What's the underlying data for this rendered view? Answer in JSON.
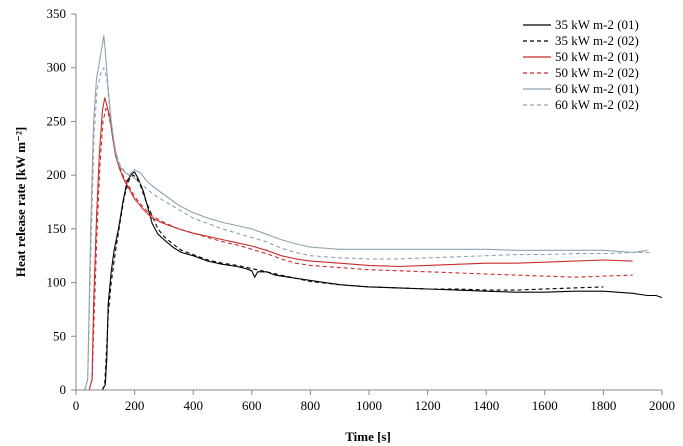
{
  "chart_data": {
    "type": "line",
    "title": "",
    "xlabel": "Time [s]",
    "ylabel": "Heat release rate [kW m⁻²]",
    "xlim": [
      0,
      2000
    ],
    "ylim": [
      0,
      350
    ],
    "xticks": [
      0,
      200,
      400,
      600,
      800,
      1000,
      1200,
      1400,
      1600,
      1800,
      2000
    ],
    "yticks": [
      0,
      50,
      100,
      150,
      200,
      250,
      300,
      350
    ],
    "grid": false,
    "legend_position": "top-right",
    "series": [
      {
        "name": "35 kW m-2 (01)",
        "color": "#000000",
        "dash": "solid",
        "points": [
          [
            90,
            0
          ],
          [
            100,
            5
          ],
          [
            105,
            30
          ],
          [
            110,
            80
          ],
          [
            120,
            110
          ],
          [
            130,
            130
          ],
          [
            145,
            150
          ],
          [
            160,
            175
          ],
          [
            175,
            195
          ],
          [
            190,
            201
          ],
          [
            200,
            203
          ],
          [
            215,
            195
          ],
          [
            230,
            185
          ],
          [
            245,
            170
          ],
          [
            260,
            155
          ],
          [
            280,
            145
          ],
          [
            300,
            140
          ],
          [
            330,
            133
          ],
          [
            360,
            128
          ],
          [
            400,
            125
          ],
          [
            450,
            120
          ],
          [
            500,
            117
          ],
          [
            550,
            115
          ],
          [
            580,
            113
          ],
          [
            600,
            111
          ],
          [
            610,
            105
          ],
          [
            620,
            110
          ],
          [
            650,
            110
          ],
          [
            680,
            107
          ],
          [
            700,
            106
          ],
          [
            800,
            102
          ],
          [
            900,
            98
          ],
          [
            1000,
            96
          ],
          [
            1100,
            95
          ],
          [
            1200,
            94
          ],
          [
            1300,
            93
          ],
          [
            1400,
            92
          ],
          [
            1500,
            91
          ],
          [
            1600,
            91
          ],
          [
            1700,
            92
          ],
          [
            1800,
            92
          ],
          [
            1900,
            90
          ],
          [
            1950,
            88
          ],
          [
            1980,
            88
          ],
          [
            2000,
            86
          ]
        ]
      },
      {
        "name": "35 kW m-2 (02)",
        "color": "#000000",
        "dash": "dashed",
        "points": [
          [
            90,
            0
          ],
          [
            98,
            5
          ],
          [
            102,
            25
          ],
          [
            110,
            70
          ],
          [
            120,
            100
          ],
          [
            135,
            130
          ],
          [
            150,
            155
          ],
          [
            165,
            180
          ],
          [
            180,
            195
          ],
          [
            195,
            200
          ],
          [
            205,
            198
          ],
          [
            220,
            190
          ],
          [
            240,
            175
          ],
          [
            260,
            162
          ],
          [
            280,
            150
          ],
          [
            300,
            143
          ],
          [
            330,
            136
          ],
          [
            360,
            130
          ],
          [
            400,
            126
          ],
          [
            450,
            121
          ],
          [
            500,
            118
          ],
          [
            550,
            116
          ],
          [
            600,
            113
          ],
          [
            650,
            110
          ],
          [
            700,
            107
          ],
          [
            800,
            101
          ],
          [
            900,
            98
          ],
          [
            1000,
            96
          ],
          [
            1100,
            95
          ],
          [
            1200,
            94
          ],
          [
            1300,
            94
          ],
          [
            1400,
            93
          ],
          [
            1500,
            93
          ],
          [
            1600,
            94
          ],
          [
            1700,
            95
          ],
          [
            1800,
            96
          ]
        ]
      },
      {
        "name": "50 kW m-2 (01)",
        "color": "#cc2b2b",
        "dash": "solid",
        "points": [
          [
            45,
            0
          ],
          [
            55,
            10
          ],
          [
            60,
            80
          ],
          [
            70,
            160
          ],
          [
            80,
            220
          ],
          [
            90,
            260
          ],
          [
            98,
            272
          ],
          [
            105,
            265
          ],
          [
            115,
            255
          ],
          [
            125,
            235
          ],
          [
            135,
            218
          ],
          [
            150,
            205
          ],
          [
            165,
            195
          ],
          [
            180,
            188
          ],
          [
            200,
            178
          ],
          [
            230,
            168
          ],
          [
            260,
            160
          ],
          [
            300,
            155
          ],
          [
            350,
            150
          ],
          [
            400,
            146
          ],
          [
            450,
            143
          ],
          [
            500,
            140
          ],
          [
            550,
            137
          ],
          [
            600,
            134
          ],
          [
            650,
            130
          ],
          [
            700,
            125
          ],
          [
            750,
            122
          ],
          [
            800,
            120
          ],
          [
            900,
            118
          ],
          [
            1000,
            116
          ],
          [
            1100,
            115
          ],
          [
            1200,
            116
          ],
          [
            1300,
            117
          ],
          [
            1400,
            118
          ],
          [
            1500,
            118
          ],
          [
            1600,
            119
          ],
          [
            1700,
            120
          ],
          [
            1800,
            121
          ],
          [
            1900,
            120
          ]
        ]
      },
      {
        "name": "50 kW m-2 (02)",
        "color": "#cc2b2b",
        "dash": "dashed",
        "points": [
          [
            45,
            0
          ],
          [
            55,
            10
          ],
          [
            62,
            70
          ],
          [
            72,
            150
          ],
          [
            82,
            210
          ],
          [
            92,
            250
          ],
          [
            102,
            262
          ],
          [
            110,
            258
          ],
          [
            120,
            245
          ],
          [
            130,
            228
          ],
          [
            145,
            210
          ],
          [
            160,
            200
          ],
          [
            180,
            190
          ],
          [
            200,
            180
          ],
          [
            230,
            170
          ],
          [
            260,
            162
          ],
          [
            300,
            156
          ],
          [
            350,
            150
          ],
          [
            400,
            146
          ],
          [
            450,
            142
          ],
          [
            500,
            138
          ],
          [
            550,
            135
          ],
          [
            600,
            131
          ],
          [
            650,
            127
          ],
          [
            700,
            122
          ],
          [
            750,
            118
          ],
          [
            800,
            116
          ],
          [
            900,
            114
          ],
          [
            1000,
            112
          ],
          [
            1100,
            111
          ],
          [
            1200,
            110
          ],
          [
            1300,
            109
          ],
          [
            1400,
            108
          ],
          [
            1500,
            107
          ],
          [
            1600,
            106
          ],
          [
            1700,
            105
          ],
          [
            1800,
            106
          ],
          [
            1900,
            107
          ]
        ]
      },
      {
        "name": "60 kW m-2 (01)",
        "color": "#8fa4b0",
        "dash": "solid",
        "points": [
          [
            30,
            0
          ],
          [
            40,
            10
          ],
          [
            50,
            150
          ],
          [
            60,
            250
          ],
          [
            70,
            290
          ],
          [
            80,
            305
          ],
          [
            90,
            322
          ],
          [
            95,
            330
          ],
          [
            100,
            315
          ],
          [
            110,
            280
          ],
          [
            120,
            250
          ],
          [
            130,
            230
          ],
          [
            140,
            215
          ],
          [
            150,
            208
          ],
          [
            165,
            203
          ],
          [
            180,
            200
          ],
          [
            200,
            205
          ],
          [
            220,
            202
          ],
          [
            240,
            195
          ],
          [
            260,
            190
          ],
          [
            300,
            182
          ],
          [
            350,
            172
          ],
          [
            400,
            165
          ],
          [
            450,
            160
          ],
          [
            500,
            156
          ],
          [
            550,
            153
          ],
          [
            600,
            150
          ],
          [
            650,
            145
          ],
          [
            700,
            140
          ],
          [
            750,
            136
          ],
          [
            800,
            133
          ],
          [
            900,
            131
          ],
          [
            1000,
            131
          ],
          [
            1100,
            131
          ],
          [
            1200,
            131
          ],
          [
            1300,
            131
          ],
          [
            1400,
            131
          ],
          [
            1500,
            130
          ],
          [
            1600,
            130
          ],
          [
            1700,
            130
          ],
          [
            1800,
            130
          ],
          [
            1900,
            128
          ],
          [
            1950,
            130
          ]
        ]
      },
      {
        "name": "60 kW m-2 (02)",
        "color": "#8fa4b0",
        "dash": "dashed",
        "points": [
          [
            30,
            0
          ],
          [
            40,
            10
          ],
          [
            52,
            140
          ],
          [
            62,
            240
          ],
          [
            72,
            280
          ],
          [
            85,
            295
          ],
          [
            95,
            300
          ],
          [
            105,
            290
          ],
          [
            115,
            262
          ],
          [
            125,
            240
          ],
          [
            135,
            222
          ],
          [
            150,
            210
          ],
          [
            170,
            202
          ],
          [
            200,
            197
          ],
          [
            230,
            190
          ],
          [
            260,
            183
          ],
          [
            300,
            176
          ],
          [
            350,
            168
          ],
          [
            400,
            160
          ],
          [
            450,
            155
          ],
          [
            500,
            150
          ],
          [
            550,
            146
          ],
          [
            600,
            142
          ],
          [
            650,
            138
          ],
          [
            700,
            132
          ],
          [
            750,
            128
          ],
          [
            800,
            125
          ],
          [
            900,
            123
          ],
          [
            1000,
            122
          ],
          [
            1100,
            122
          ],
          [
            1200,
            123
          ],
          [
            1300,
            124
          ],
          [
            1400,
            125
          ],
          [
            1500,
            126
          ],
          [
            1600,
            126
          ],
          [
            1700,
            127
          ],
          [
            1800,
            127
          ],
          [
            1900,
            128
          ],
          [
            1960,
            128
          ]
        ]
      }
    ]
  }
}
